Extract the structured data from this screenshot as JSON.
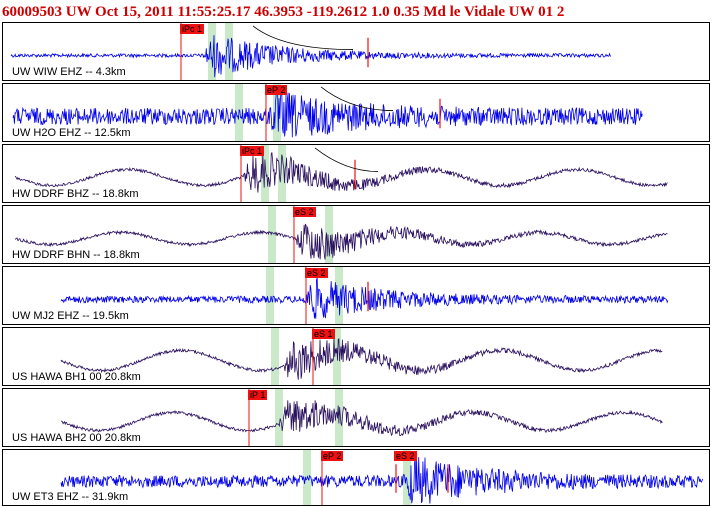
{
  "header": {
    "title": "60009503 UW Oct 15, 2011 11:55:25.17     46.3953 -119.2612  1.0 0.35 Md le Vidale UW 01   2"
  },
  "colors": {
    "title": "#cc0000",
    "trace_blue": "#0000ee",
    "trace_dark": "#2a1060",
    "pick": "#ee1111",
    "window": "#bfe5bf"
  },
  "panels": [
    {
      "label": "UW WIW EHZ -- 4.3km",
      "color": "blue",
      "picks": [
        "iPc 1"
      ]
    },
    {
      "label": "UW H2O EHZ -- 12.5km",
      "color": "blue",
      "picks": [
        "eP 2"
      ]
    },
    {
      "label": "HW DDRF BHZ -- 18.8km",
      "color": "dark",
      "picks": [
        "iPc 1"
      ]
    },
    {
      "label": "HW DDRF BHN -- 18.8km",
      "color": "dark",
      "picks": [
        "eS 2"
      ]
    },
    {
      "label": "UW MJ2 EHZ -- 19.5km",
      "color": "blue",
      "picks": [
        "eS 2"
      ]
    },
    {
      "label": "US HAWA BH1 00 20.8km",
      "color": "dark",
      "picks": [
        "eS 1"
      ]
    },
    {
      "label": "US HAWA BH2 00 20.8km",
      "color": "dark",
      "picks": [
        "iP 1"
      ]
    },
    {
      "label": "UW ET3 EHZ -- 31.9km",
      "color": "blue",
      "picks": [
        "eP 2",
        "eS 2"
      ]
    }
  ]
}
